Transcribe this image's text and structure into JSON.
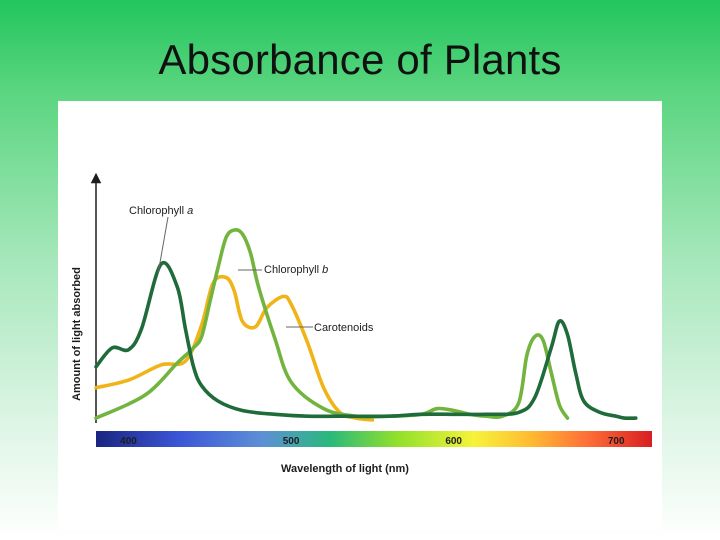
{
  "slide": {
    "title": "Absorbance of Plants"
  },
  "chart_data": {
    "type": "line",
    "title": "",
    "xlabel": "Wavelength of light (nm)",
    "ylabel": "Amount of light absorbed",
    "xlim": [
      380,
      722
    ],
    "ylim": [
      0,
      1
    ],
    "x_ticks": [
      400,
      500,
      600,
      700
    ],
    "grid": false,
    "legend": "none",
    "spectrum_bar": true,
    "series": [
      {
        "name": "Chlorophyll a",
        "label_parts": [
          "Chlorophyll ",
          "a"
        ],
        "color": "#1f6b3a",
        "x": [
          380,
          390,
          400,
          408,
          420,
          430,
          435,
          440,
          445,
          455,
          470,
          490,
          510,
          530,
          560,
          580,
          600,
          620,
          640,
          650,
          660,
          665,
          670,
          675,
          680,
          690,
          700,
          705,
          712
        ],
        "y": [
          0.28,
          0.38,
          0.37,
          0.48,
          0.82,
          0.7,
          0.48,
          0.28,
          0.18,
          0.1,
          0.05,
          0.03,
          0.02,
          0.02,
          0.02,
          0.03,
          0.03,
          0.03,
          0.04,
          0.12,
          0.38,
          0.52,
          0.45,
          0.25,
          0.1,
          0.04,
          0.02,
          0.01,
          0.01
        ]
      },
      {
        "name": "Chlorophyll b",
        "label_parts": [
          "Chlorophyll ",
          "b"
        ],
        "color": "#73b43f",
        "x": [
          380,
          410,
          430,
          440,
          445,
          450,
          455,
          460,
          465,
          470,
          475,
          480,
          490,
          500,
          520,
          540,
          560,
          580,
          590,
          600,
          610,
          620,
          630,
          640,
          645,
          650,
          655,
          660,
          665,
          670
        ],
        "y": [
          0.01,
          0.13,
          0.3,
          0.38,
          0.44,
          0.62,
          0.8,
          0.96,
          1.0,
          0.98,
          0.88,
          0.7,
          0.43,
          0.2,
          0.06,
          0.02,
          0.02,
          0.03,
          0.06,
          0.05,
          0.03,
          0.02,
          0.02,
          0.09,
          0.34,
          0.44,
          0.42,
          0.25,
          0.08,
          0.01
        ]
      },
      {
        "name": "Carotenoids",
        "label_parts": [
          "Carotenoids",
          ""
        ],
        "color": "#f0b419",
        "x": [
          380,
          400,
          420,
          435,
          445,
          452,
          460,
          465,
          470,
          478,
          485,
          495,
          500,
          510,
          520,
          530,
          540,
          550
        ],
        "y": [
          0.17,
          0.21,
          0.29,
          0.31,
          0.5,
          0.72,
          0.75,
          0.68,
          0.52,
          0.49,
          0.59,
          0.65,
          0.61,
          0.41,
          0.17,
          0.04,
          0.01,
          0.0
        ]
      }
    ]
  }
}
